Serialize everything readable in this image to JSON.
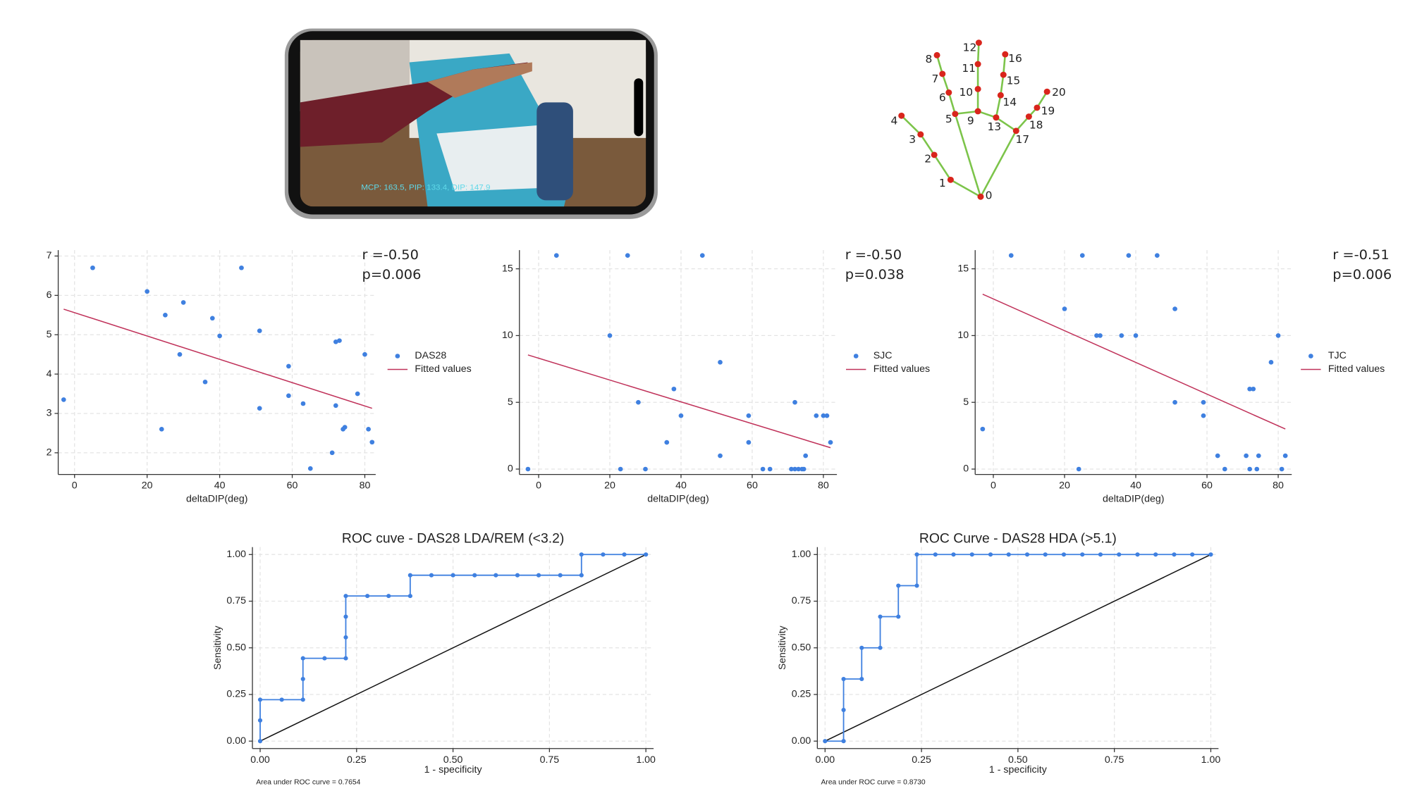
{
  "phone_screen": {
    "overlay": "MCP: 163.5, PIP: 133.4, DIP: 147.9"
  },
  "hand_landmarks": {
    "labels": [
      "0",
      "1",
      "2",
      "3",
      "4",
      "5",
      "6",
      "7",
      "8",
      "9",
      "10",
      "11",
      "12",
      "13",
      "14",
      "15",
      "16",
      "17",
      "18",
      "19",
      "20"
    ]
  },
  "chart_data": [
    {
      "type": "scatter",
      "xlabel": "deltaDIP(deg)",
      "annotations": [
        "r =-0.50",
        "p=0.006"
      ],
      "grid": true,
      "legend": "right",
      "xlim": [
        -4.5,
        83
      ],
      "xticks": [
        0,
        20,
        40,
        60,
        80
      ],
      "ylim": [
        1.45,
        7.15
      ],
      "yticks": [
        2,
        3,
        4,
        5,
        6,
        7
      ],
      "x": [
        -3,
        5,
        20,
        24,
        25,
        29,
        30,
        36,
        38,
        40,
        46,
        51,
        51,
        59,
        59,
        63,
        65,
        71,
        72,
        72,
        73,
        74,
        74.5,
        78,
        80,
        81,
        82
      ],
      "series": [
        {
          "name": "DAS28",
          "color": "#3f80e0",
          "values": [
            3.35,
            6.7,
            6.1,
            2.6,
            5.5,
            4.5,
            5.82,
            3.8,
            5.42,
            4.97,
            6.7,
            5.1,
            3.13,
            4.2,
            3.45,
            3.25,
            1.6,
            2.0,
            3.2,
            4.82,
            4.85,
            2.6,
            2.65,
            3.5,
            4.5,
            2.6,
            2.27
          ]
        },
        {
          "name": "Fitted values",
          "color": "#c0325a",
          "x": [
            -3,
            82
          ],
          "values": [
            5.65,
            3.13
          ]
        }
      ]
    },
    {
      "type": "scatter",
      "xlabel": "deltaDIP(deg)",
      "annotations": [
        "r =-0.50",
        "p=0.038"
      ],
      "grid": true,
      "legend": "right",
      "xlim": [
        -5.4,
        83.8
      ],
      "xticks": [
        0,
        20,
        40,
        60,
        80
      ],
      "ylim": [
        -0.4,
        16.4
      ],
      "yticks": [
        0,
        5,
        10,
        15
      ],
      "x": [
        -3,
        5,
        20,
        23,
        25,
        28,
        30,
        36,
        38,
        40,
        46,
        51,
        51,
        59,
        59,
        63,
        65,
        71,
        72,
        72,
        73,
        74,
        74.5,
        75,
        78,
        80,
        81,
        82
      ],
      "series": [
        {
          "name": "SJC",
          "color": "#3f80e0",
          "values": [
            0,
            16,
            10,
            0,
            16,
            5,
            0,
            2,
            6,
            4,
            16,
            8,
            1,
            4,
            2,
            0,
            0,
            0,
            5,
            0,
            0,
            0,
            0,
            1,
            4,
            4,
            4,
            2
          ]
        },
        {
          "name": "Fitted values",
          "color": "#c0325a",
          "x": [
            -3,
            82
          ],
          "values": [
            8.55,
            1.6
          ]
        }
      ]
    },
    {
      "type": "scatter",
      "xlabel": "deltaDIP(deg)",
      "annotations": [
        "r =-0.51",
        "p=0.006"
      ],
      "grid": true,
      "legend": "right",
      "xlim": [
        -5.1,
        83.8
      ],
      "xticks": [
        0,
        20,
        40,
        60,
        80
      ],
      "ylim": [
        -0.4,
        16.4
      ],
      "yticks": [
        0,
        5,
        10,
        15
      ],
      "x": [
        -3,
        5,
        20,
        24,
        25,
        29,
        30,
        36,
        38,
        40,
        46,
        51,
        51,
        59,
        59,
        63,
        65,
        71,
        72,
        72,
        73,
        74,
        74.5,
        78,
        80,
        81,
        82
      ],
      "series": [
        {
          "name": "TJC",
          "color": "#3f80e0",
          "values": [
            3,
            16,
            12,
            0,
            16,
            10,
            10,
            10,
            16,
            10,
            16,
            12,
            5,
            4,
            5,
            1,
            0,
            1,
            0,
            6,
            6,
            0,
            1,
            8,
            10,
            0,
            1
          ]
        },
        {
          "name": "Fitted values",
          "color": "#c0325a",
          "x": [
            -3,
            82
          ],
          "values": [
            13.1,
            3
          ]
        }
      ]
    },
    {
      "type": "line",
      "title": "ROC cuve - DAS28 LDA/REM (<3.2)",
      "xlabel": "1 - specificity",
      "ylabel": "Sensitivity",
      "note": "Area under ROC curve = 0.7654",
      "grid": true,
      "xlim": [
        -0.02,
        1.02
      ],
      "xticks": [
        {
          "value": 0,
          "label": "0.00"
        },
        0.25,
        {
          "value": 0.5,
          "label": "0.50"
        },
        0.75,
        {
          "value": 1,
          "label": "1.00"
        }
      ],
      "ylim": [
        -0.04,
        1.04
      ],
      "yticks": [
        {
          "value": 0,
          "label": "0.00"
        },
        0.25,
        {
          "value": 0.5,
          "label": "0.50"
        },
        0.75,
        {
          "value": 1,
          "label": "1.00"
        }
      ],
      "x": [
        0,
        0,
        0,
        0.056,
        0.111,
        0.111,
        0.111,
        0.167,
        0.222,
        0.222,
        0.222,
        0.222,
        0.278,
        0.333,
        0.389,
        0.389,
        0.444,
        0.5,
        0.556,
        0.611,
        0.667,
        0.722,
        0.778,
        0.833,
        0.833,
        0.889,
        0.944,
        1
      ],
      "series": [
        {
          "color": "#3f80e0",
          "values": [
            0,
            0.111,
            0.222,
            0.222,
            0.222,
            0.333,
            0.444,
            0.444,
            0.444,
            0.556,
            0.667,
            0.778,
            0.778,
            0.778,
            0.778,
            0.889,
            0.889,
            0.889,
            0.889,
            0.889,
            0.889,
            0.889,
            0.889,
            0.889,
            1,
            1,
            1,
            1
          ]
        }
      ]
    },
    {
      "type": "line",
      "title": "ROC Curve - DAS28 HDA (>5.1)",
      "xlabel": "1 - specificity",
      "ylabel": "Sensitivity",
      "note": "Area under ROC curve = 0.8730",
      "grid": true,
      "xlim": [
        -0.02,
        1.02
      ],
      "xticks": [
        {
          "value": 0,
          "label": "0.00"
        },
        0.25,
        {
          "value": 0.5,
          "label": "0.50"
        },
        0.75,
        {
          "value": 1,
          "label": "1.00"
        }
      ],
      "ylim": [
        -0.04,
        1.04
      ],
      "yticks": [
        {
          "value": 0,
          "label": "0.00"
        },
        0.25,
        {
          "value": 0.5,
          "label": "0.50"
        },
        0.75,
        {
          "value": 1,
          "label": "1.00"
        }
      ],
      "x": [
        0,
        0.048,
        0.048,
        0.048,
        0.095,
        0.095,
        0.143,
        0.143,
        0.19,
        0.19,
        0.238,
        0.238,
        0.286,
        0.333,
        0.381,
        0.429,
        0.476,
        0.524,
        0.571,
        0.619,
        0.667,
        0.714,
        0.762,
        0.81,
        0.857,
        0.905,
        0.952,
        1
      ],
      "series": [
        {
          "color": "#3f80e0",
          "values": [
            0,
            0,
            0.167,
            0.333,
            0.333,
            0.5,
            0.5,
            0.667,
            0.667,
            0.833,
            0.833,
            1,
            1,
            1,
            1,
            1,
            1,
            1,
            1,
            1,
            1,
            1,
            1,
            1,
            1,
            1,
            1,
            1
          ]
        }
      ]
    }
  ]
}
